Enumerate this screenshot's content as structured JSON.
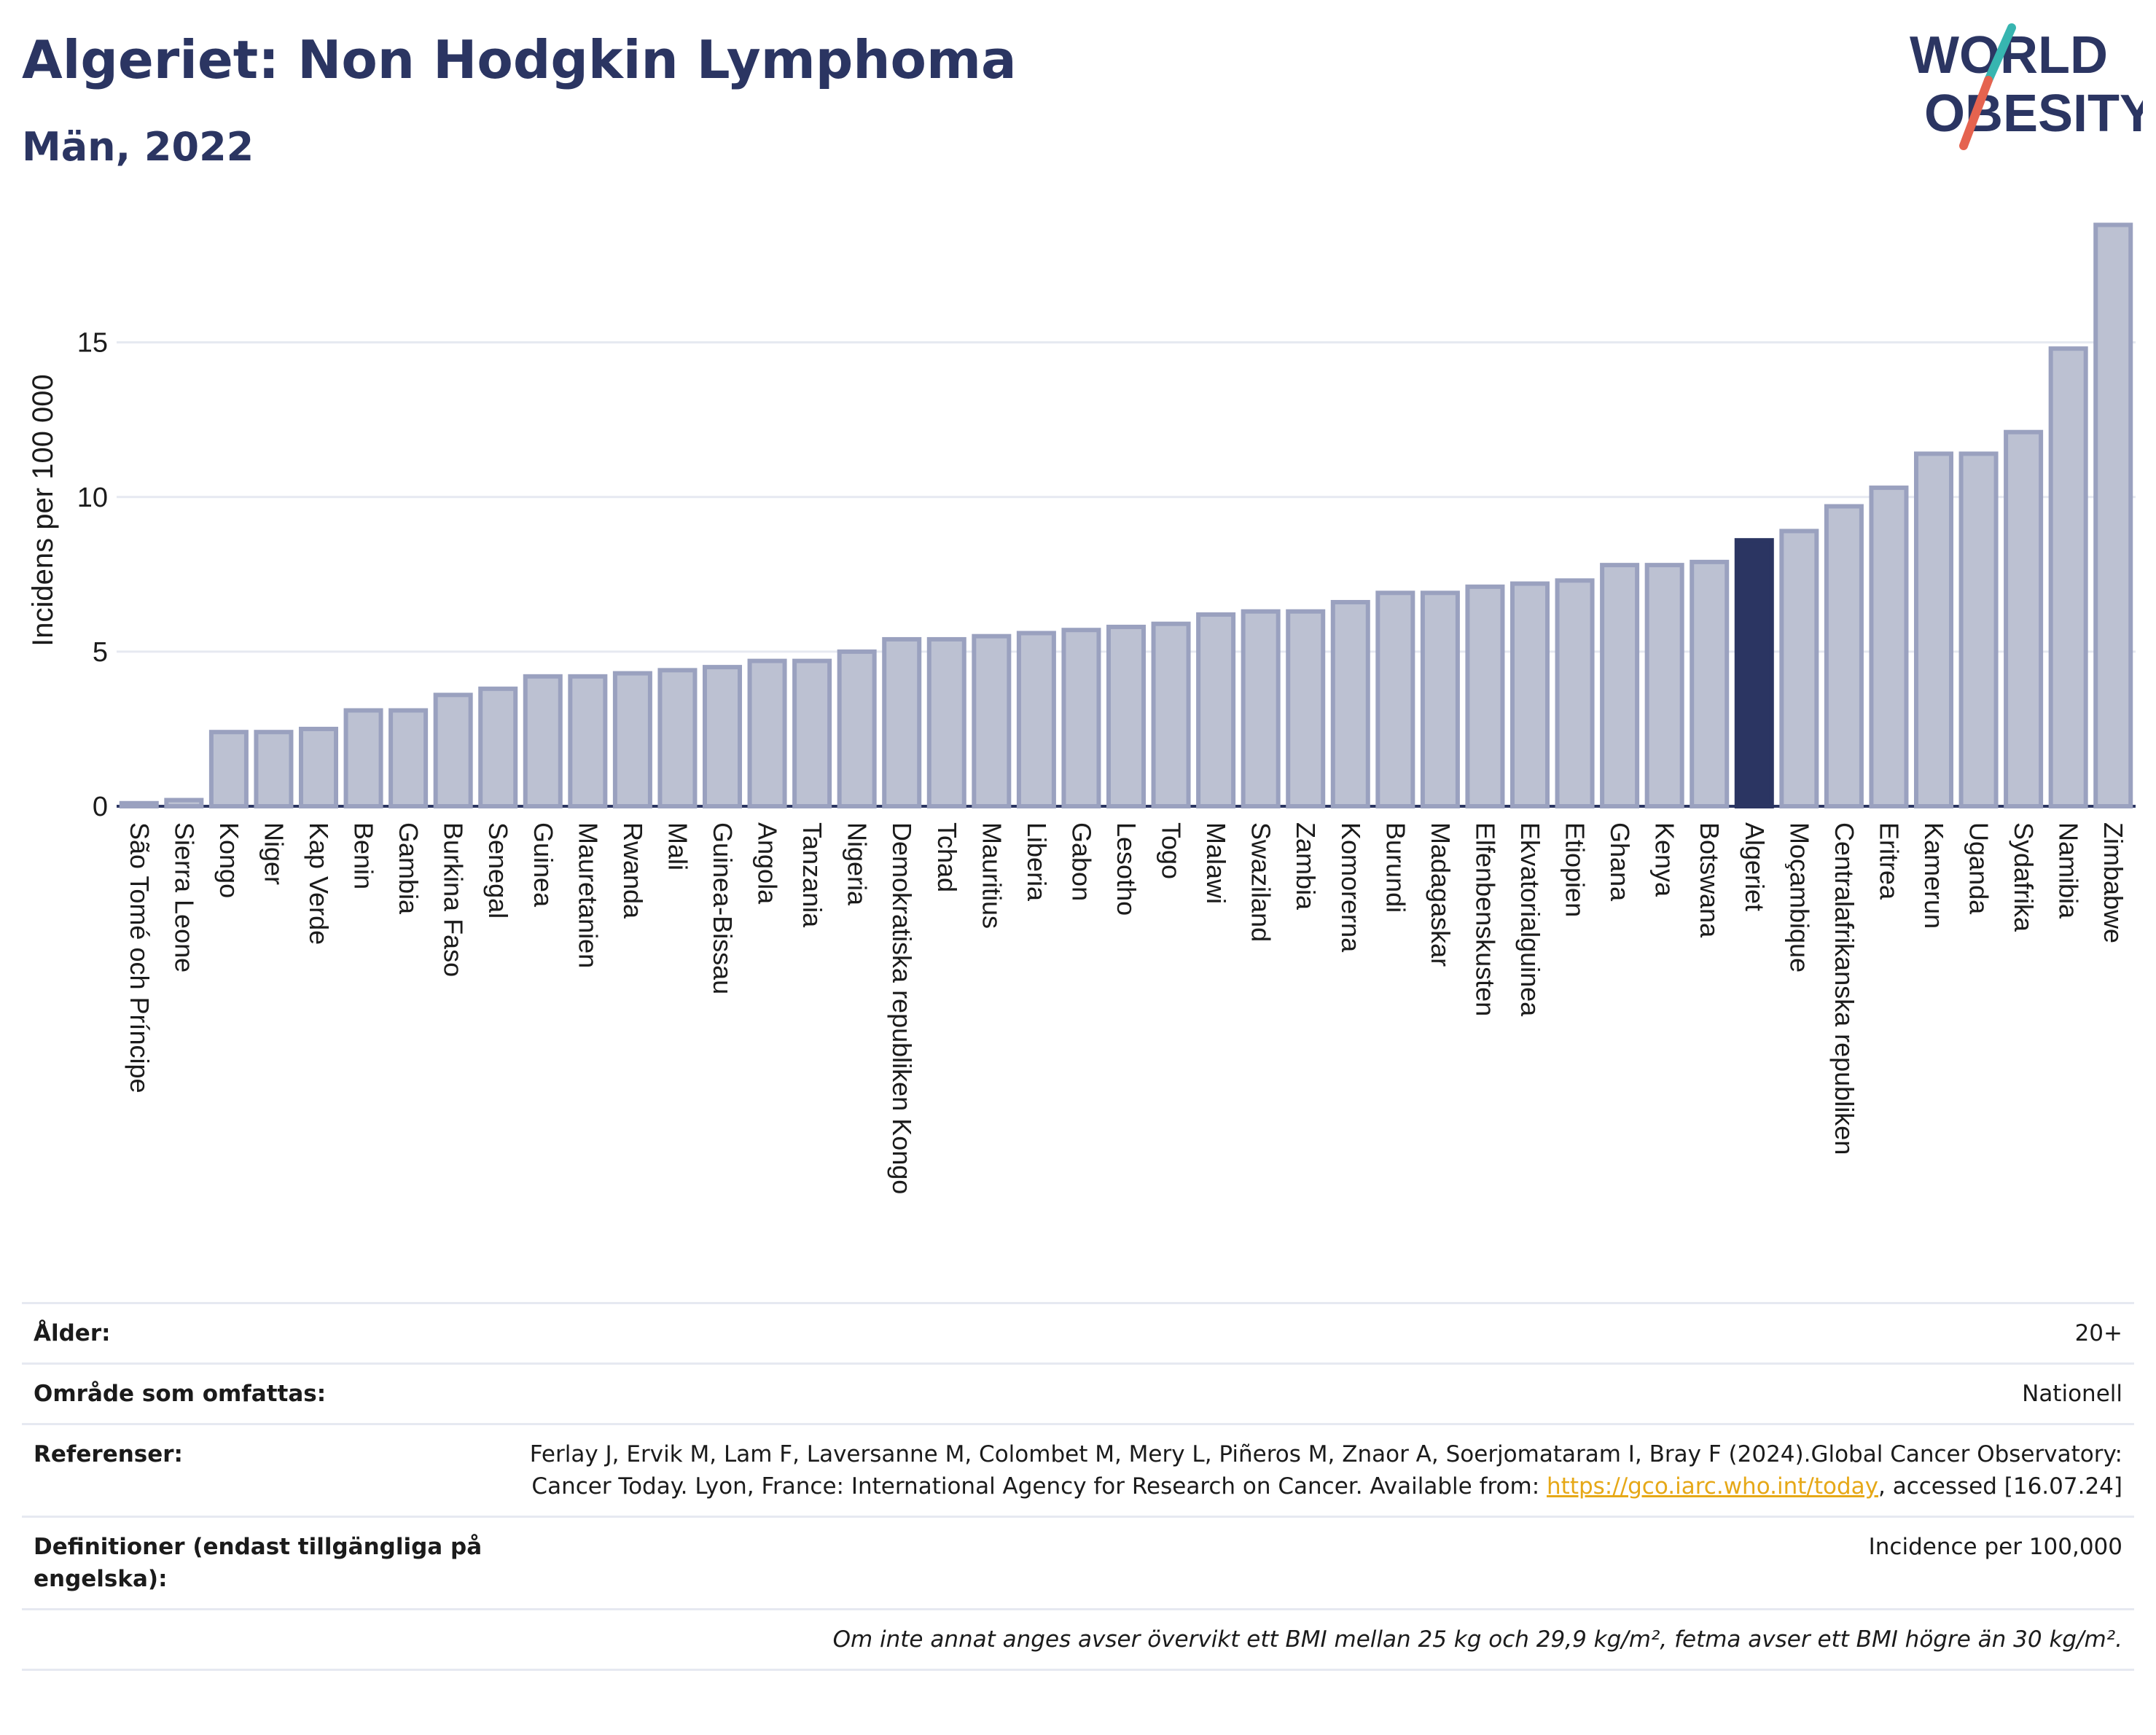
{
  "header": {
    "title": "Algeriet: Non Hodgkin Lymphoma",
    "subtitle": "Män, 2022",
    "logo_line1": "WORLD",
    "logo_line2": "OBESITY"
  },
  "colors": {
    "bar": "#bcc1d2",
    "bar_border": "#9aa1bf",
    "highlight": "#2b3562",
    "title": "#2b3562",
    "grid": "#e6e9f1",
    "logo_teal": "#37b5b0",
    "logo_red": "#e5634f"
  },
  "chart_data": {
    "type": "bar",
    "ylabel": "Incidens per 100 000",
    "ylim": [
      0,
      19
    ],
    "yticks": [
      0,
      5,
      10,
      15
    ],
    "grid": true,
    "highlight": "Algeriet",
    "categories": [
      "São Tomé och Príncipe",
      "Sierra Leone",
      "Kongo",
      "Niger",
      "Kap Verde",
      "Benin",
      "Gambia",
      "Burkina Faso",
      "Senegal",
      "Guinea",
      "Mauretanien",
      "Rwanda",
      "Mali",
      "Guinea-Bissau",
      "Angola",
      "Tanzania",
      "Nigeria",
      "Demokratiska republiken Kongo",
      "Tchad",
      "Mauritius",
      "Liberia",
      "Gabon",
      "Lesotho",
      "Togo",
      "Malawi",
      "Swaziland",
      "Zambia",
      "Komorerna",
      "Burundi",
      "Madagaskar",
      "Elfenbenskusten",
      "Ekvatorialguinea",
      "Etiopien",
      "Ghana",
      "Kenya",
      "Botswana",
      "Algeriet",
      "Moçambique",
      "Centralafrikanska republiken",
      "Eritrea",
      "Kamerun",
      "Uganda",
      "Sydafrika",
      "Namibia",
      "Zimbabwe"
    ],
    "values": [
      0.1,
      0.2,
      2.4,
      2.4,
      2.5,
      3.1,
      3.1,
      3.6,
      3.8,
      4.2,
      4.2,
      4.3,
      4.4,
      4.5,
      4.7,
      4.7,
      5.0,
      5.4,
      5.4,
      5.5,
      5.6,
      5.7,
      5.8,
      5.9,
      6.2,
      6.3,
      6.3,
      6.6,
      6.9,
      6.9,
      7.1,
      7.2,
      7.3,
      7.8,
      7.8,
      7.9,
      8.6,
      8.9,
      9.7,
      10.3,
      11.4,
      11.4,
      12.1,
      14.8,
      18.8
    ]
  },
  "info": {
    "age_label": "Ålder:",
    "age_value": "20+",
    "area_label": "Område som omfattas:",
    "area_value": "Nationell",
    "ref_label": "Referenser:",
    "ref_text1": "Ferlay J, Ervik M, Lam F, Laversanne M, Colombet M, Mery L, Piñeros M, Znaor A, Soerjomataram I, Bray F (2024).Global Cancer Observatory: Cancer Today. Lyon, France: International Agency for Research on Cancer. Available from: ",
    "ref_link": "https://gco.iarc.who.int/today",
    "ref_text2": ", accessed [16.07.24]",
    "def_label": "Definitioner (endast tillgängliga på engelska):",
    "def_value": "Incidence per 100,000",
    "note": "Om inte annat anges avser övervikt ett BMI mellan 25 kg och 29,9 kg/m², fetma avser ett BMI högre än 30 kg/m²."
  }
}
